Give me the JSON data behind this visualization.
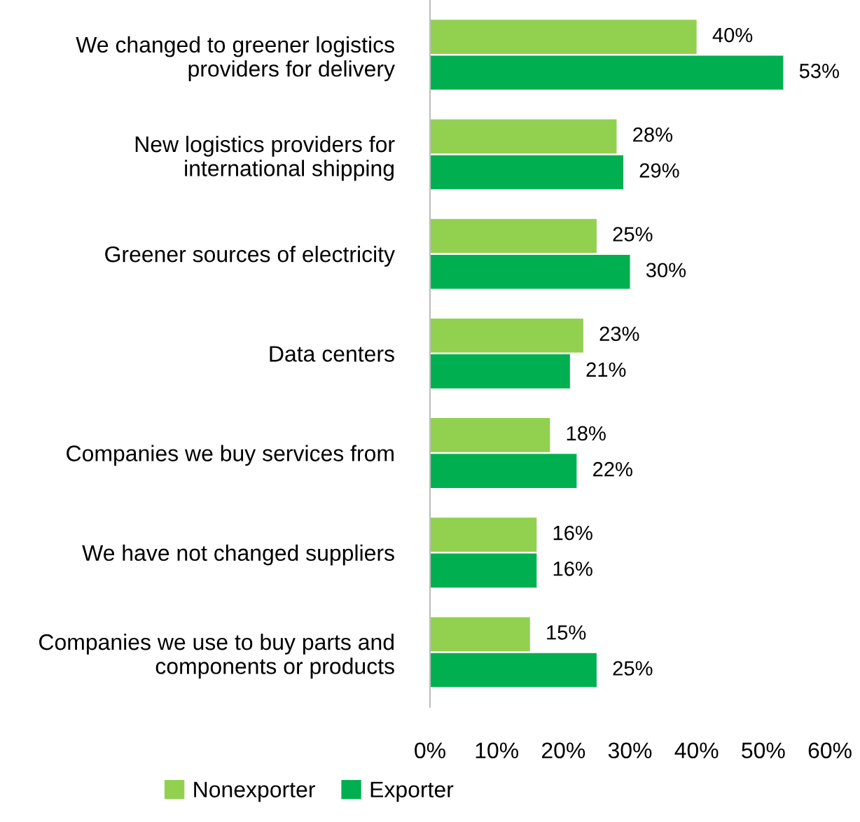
{
  "chart_data": {
    "type": "bar",
    "orientation": "horizontal",
    "categories": [
      "We changed to greener logistics\nproviders for delivery",
      "New logistics providers for\ninternational shipping",
      "Greener sources of electricity",
      "Data centers",
      "Companies we buy services from",
      "We have not changed suppliers",
      "Companies we use to buy parts and\ncomponents or products"
    ],
    "series": [
      {
        "name": "Nonexporter",
        "color": "#92d050",
        "values": [
          40,
          28,
          25,
          23,
          18,
          16,
          15
        ],
        "value_labels": [
          "40%",
          "28%",
          "25%",
          "23%",
          "18%",
          "16%",
          "15%"
        ]
      },
      {
        "name": "Exporter",
        "color": "#00b050",
        "values": [
          53,
          29,
          30,
          21,
          22,
          16,
          25
        ],
        "value_labels": [
          "53%",
          "29%",
          "30%",
          "21%",
          "22%",
          "16%",
          "25%"
        ]
      }
    ],
    "xlim": [
      0,
      60
    ],
    "xticks": [
      {
        "value": 0,
        "label": "0%"
      },
      {
        "value": 10,
        "label": "10%"
      },
      {
        "value": 20,
        "label": "20%"
      },
      {
        "value": 30,
        "label": "30%"
      },
      {
        "value": 40,
        "label": "40%"
      },
      {
        "value": 50,
        "label": "50%"
      },
      {
        "value": 60,
        "label": "60%"
      }
    ],
    "grid": false,
    "legend": "bottom"
  }
}
